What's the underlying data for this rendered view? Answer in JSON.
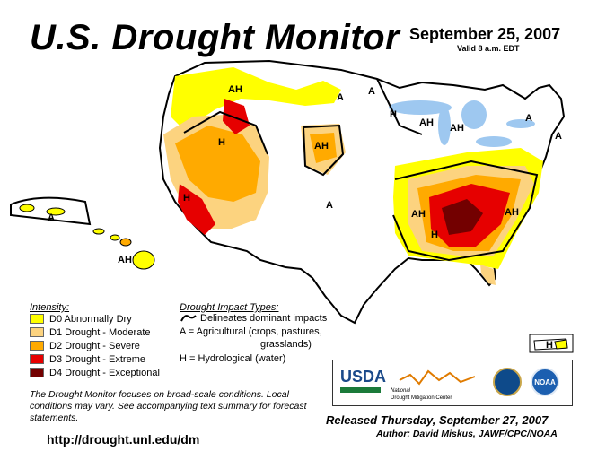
{
  "header": {
    "title": "U.S. Drought Monitor",
    "date": "September 25, 2007",
    "valid": "Valid 8 a.m. EDT"
  },
  "colors": {
    "D0": "#ffff00",
    "D1": "#fcd37f",
    "D2": "#ffaa00",
    "D3": "#e60000",
    "D4": "#730000",
    "water": "#9ec8f0",
    "land": "#ffffff",
    "state_lines": "#000000"
  },
  "map_labels": {
    "ah_nw": "AH",
    "a_mt": "A",
    "a_nd": "A",
    "h_mn": "H",
    "ah_wi": "AH",
    "ah_mi": "AH",
    "a_ny": "A",
    "a_ne": "A",
    "h_id": "H",
    "ah_wy": "AH",
    "h_ca": "H",
    "a_ks": "A",
    "ah_tn": "AH",
    "h_ms": "H",
    "ah_nc": "AH",
    "a_hi": "A",
    "ah_hi": "AH",
    "h_pr": "H"
  },
  "legend": {
    "intensity_title": "Intensity:",
    "items": [
      {
        "label": "D0 Abnormally Dry"
      },
      {
        "label": "D1 Drought - Moderate"
      },
      {
        "label": "D2 Drought - Severe"
      },
      {
        "label": "D3 Drought - Extreme"
      },
      {
        "label": "D4 Drought - Exceptional"
      }
    ],
    "impact_title": "Drought Impact Types:",
    "impact_line": "Delineates dominant impacts",
    "impact_a": "A = Agricultural (crops, pastures,",
    "impact_a2": "grasslands)",
    "impact_h": "H = Hydrological (water)"
  },
  "note": "The Drought Monitor focuses on broad-scale conditions. Local conditions may vary. See accompanying text summary for forecast statements.",
  "url": "http://drought.unl.edu/dm",
  "logos": {
    "usda": "USDA",
    "ndmc_line1": "National",
    "ndmc_line2": "Drought Mitigation Center",
    "noaa": "NOAA"
  },
  "released": "Released Thursday, September 27, 2007",
  "author": "Author: David Miskus, JAWF/CPC/NOAA"
}
